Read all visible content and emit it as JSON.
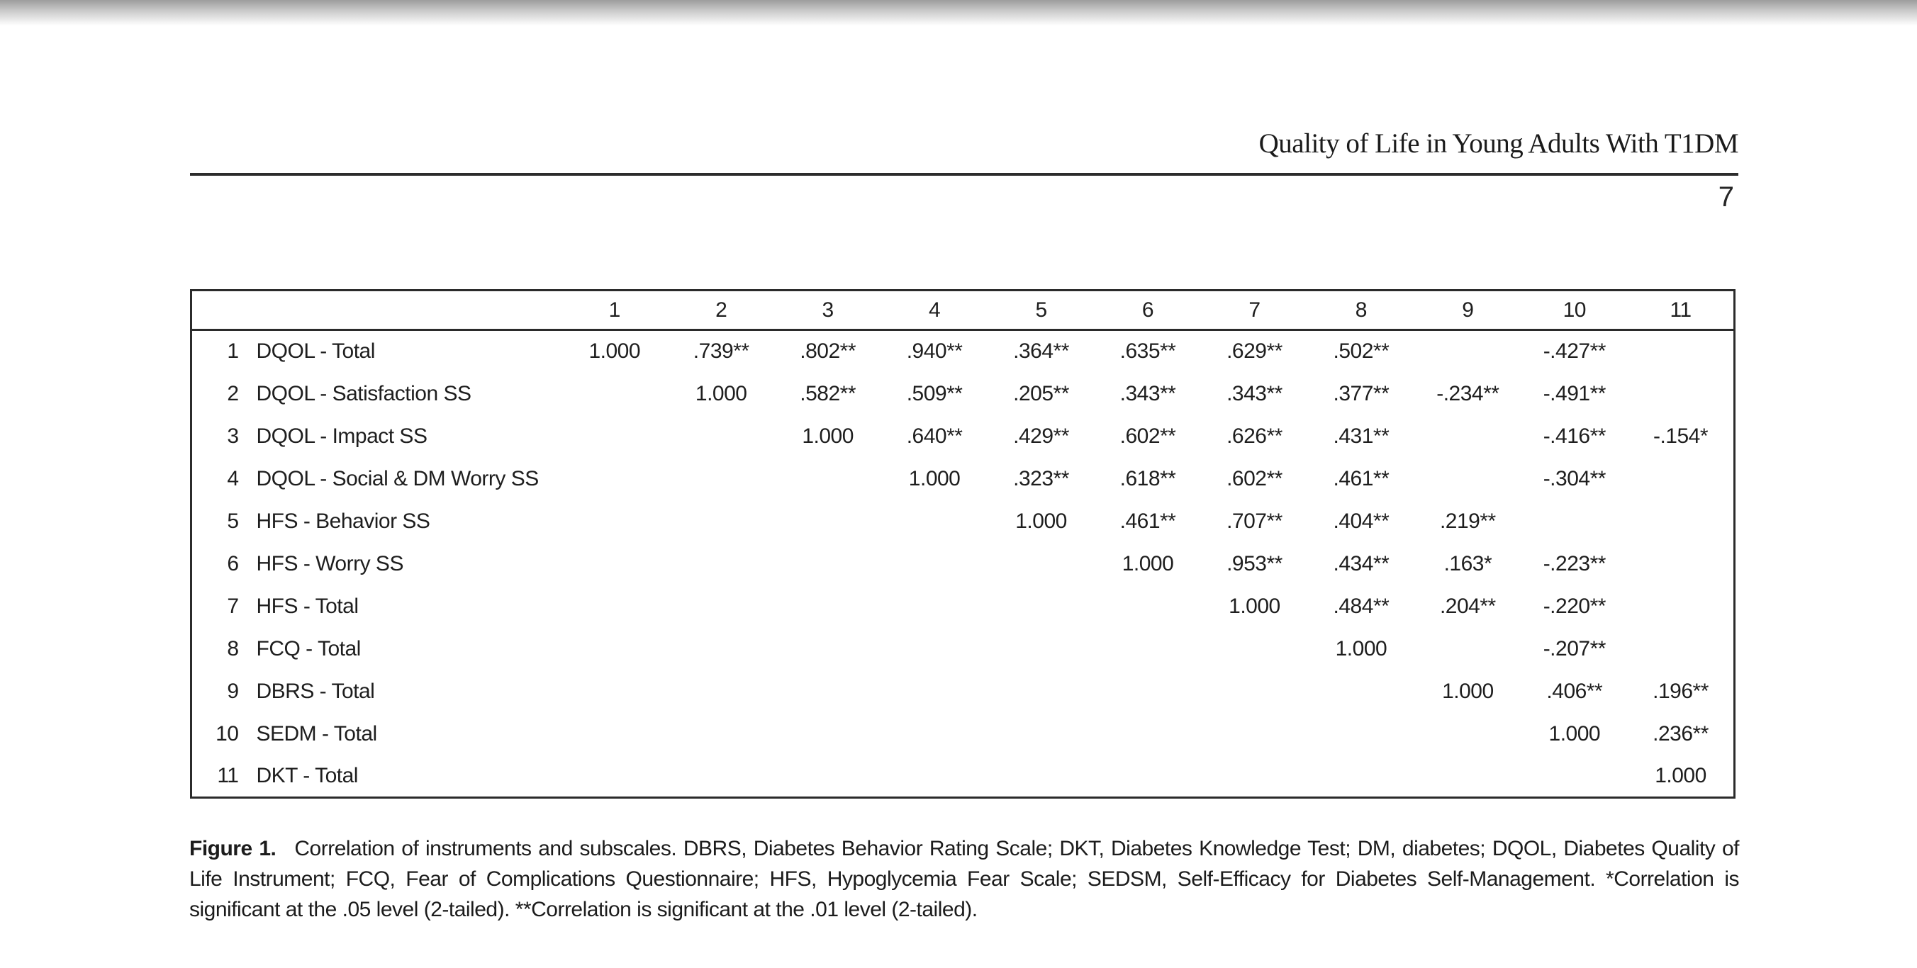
{
  "page": {
    "running_head": "Quality of Life in Young Adults With T1DM",
    "page_number": "7"
  },
  "table": {
    "column_headers": [
      "1",
      "2",
      "3",
      "4",
      "5",
      "6",
      "7",
      "8",
      "9",
      "10",
      "11"
    ],
    "rows": [
      {
        "num": "1",
        "label": "DQOL - Total",
        "values": [
          "1.000",
          ".739**",
          ".802**",
          ".940**",
          ".364**",
          ".635**",
          ".629**",
          ".502**",
          "",
          "-.427**",
          ""
        ]
      },
      {
        "num": "2",
        "label": "DQOL - Satisfaction SS",
        "values": [
          "",
          "1.000",
          ".582**",
          ".509**",
          ".205**",
          ".343**",
          ".343**",
          ".377**",
          "-.234**",
          "-.491**",
          ""
        ]
      },
      {
        "num": "3",
        "label": "DQOL - Impact SS",
        "values": [
          "",
          "",
          "1.000",
          ".640**",
          ".429**",
          ".602**",
          ".626**",
          ".431**",
          "",
          "-.416**",
          "-.154*"
        ]
      },
      {
        "num": "4",
        "label": "DQOL - Social & DM Worry SS",
        "values": [
          "",
          "",
          "",
          "1.000",
          ".323**",
          ".618**",
          ".602**",
          ".461**",
          "",
          "-.304**",
          ""
        ]
      },
      {
        "num": "5",
        "label": "HFS - Behavior SS",
        "values": [
          "",
          "",
          "",
          "",
          "1.000",
          ".461**",
          ".707**",
          ".404**",
          ".219**",
          "",
          ""
        ]
      },
      {
        "num": "6",
        "label": "HFS - Worry SS",
        "values": [
          "",
          "",
          "",
          "",
          "",
          "1.000",
          ".953**",
          ".434**",
          ".163*",
          "-.223**",
          ""
        ]
      },
      {
        "num": "7",
        "label": "HFS - Total",
        "values": [
          "",
          "",
          "",
          "",
          "",
          "",
          "1.000",
          ".484**",
          ".204**",
          "-.220**",
          ""
        ]
      },
      {
        "num": "8",
        "label": "FCQ - Total",
        "values": [
          "",
          "",
          "",
          "",
          "",
          "",
          "",
          "1.000",
          "",
          "-.207**",
          ""
        ]
      },
      {
        "num": "9",
        "label": "DBRS - Total",
        "values": [
          "",
          "",
          "",
          "",
          "",
          "",
          "",
          "",
          "1.000",
          ".406**",
          ".196**"
        ]
      },
      {
        "num": "10",
        "label": "SEDM - Total",
        "values": [
          "",
          "",
          "",
          "",
          "",
          "",
          "",
          "",
          "",
          "1.000",
          ".236**"
        ]
      },
      {
        "num": "11",
        "label": "DKT - Total",
        "values": [
          "",
          "",
          "",
          "",
          "",
          "",
          "",
          "",
          "",
          "",
          "1.000"
        ]
      }
    ]
  },
  "caption": {
    "label": "Figure 1.",
    "text": "Correlation of instruments and subscales. DBRS, Diabetes Behavior Rating Scale; DKT, Diabetes Knowledge Test; DM, diabetes; DQOL, Diabetes Quality of Life Instrument; FCQ, Fear of Complications Questionnaire; HFS, Hypoglycemia Fear Scale; SEDSM, Self-Efficacy for Diabetes Self-Management. *Correlation is significant at the .05 level (2-tailed). **Correlation is significant at the .01 level (2-tailed)."
  }
}
